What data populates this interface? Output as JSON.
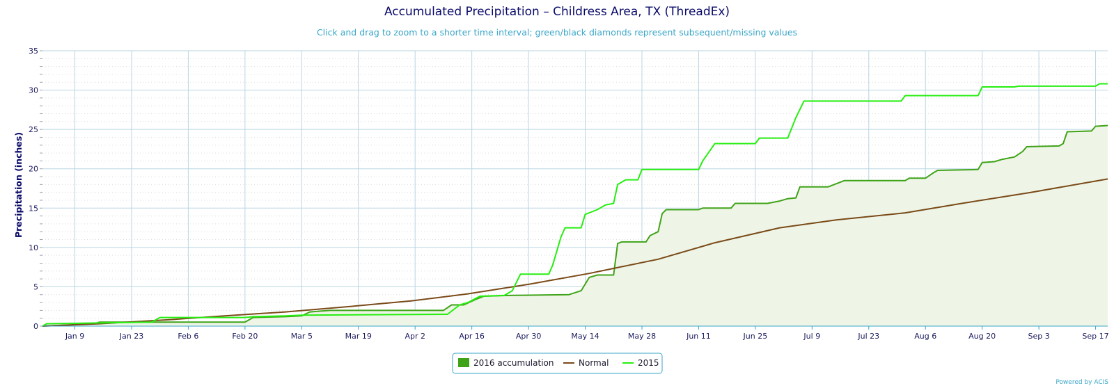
{
  "chart_data": {
    "type": "area",
    "title": "Accumulated Precipitation – Childress Area, TX (ThreadEx)",
    "subtitle": "Click and drag to zoom to a shorter time interval; green/black diamonds represent subsequent/missing values",
    "ylabel": "Precipitation (inches)",
    "xlabel": "",
    "ylim": [
      0,
      35
    ],
    "y_ticks": [
      0,
      5,
      10,
      15,
      20,
      25,
      30,
      35
    ],
    "xlim": [
      "2016-01-01",
      "2016-09-20"
    ],
    "x_ticks": [
      {
        "date": "2016-01-09",
        "label": "Jan 9"
      },
      {
        "date": "2016-01-23",
        "label": "Jan 23"
      },
      {
        "date": "2016-02-06",
        "label": "Feb 6"
      },
      {
        "date": "2016-02-20",
        "label": "Feb 20"
      },
      {
        "date": "2016-03-05",
        "label": "Mar 5"
      },
      {
        "date": "2016-03-19",
        "label": "Mar 19"
      },
      {
        "date": "2016-04-02",
        "label": "Apr 2"
      },
      {
        "date": "2016-04-16",
        "label": "Apr 16"
      },
      {
        "date": "2016-04-30",
        "label": "Apr 30"
      },
      {
        "date": "2016-05-14",
        "label": "May 14"
      },
      {
        "date": "2016-05-28",
        "label": "May 28"
      },
      {
        "date": "2016-06-11",
        "label": "Jun 11"
      },
      {
        "date": "2016-06-25",
        "label": "Jun 25"
      },
      {
        "date": "2016-07-09",
        "label": "Jul 9"
      },
      {
        "date": "2016-07-23",
        "label": "Jul 23"
      },
      {
        "date": "2016-08-06",
        "label": "Aug 6"
      },
      {
        "date": "2016-08-20",
        "label": "Aug 20"
      },
      {
        "date": "2016-09-03",
        "label": "Sep 3"
      },
      {
        "date": "2016-09-17",
        "label": "Sep 17"
      }
    ],
    "grid": true,
    "legend_position": "bottom-center",
    "series": [
      {
        "name": "2016 accumulation",
        "kind": "area",
        "color": "#3fa318",
        "fill": "#eef5e6",
        "points": [
          [
            "2016-01-01",
            0
          ],
          [
            "2016-01-14",
            0.3
          ],
          [
            "2016-01-15",
            0.5
          ],
          [
            "2016-01-25",
            0.5
          ],
          [
            "2016-02-20",
            0.5
          ],
          [
            "2016-02-22",
            1.1
          ],
          [
            "2016-03-01",
            1.2
          ],
          [
            "2016-03-05",
            1.3
          ],
          [
            "2016-03-07",
            1.8
          ],
          [
            "2016-03-12",
            2.0
          ],
          [
            "2016-04-09",
            2.0
          ],
          [
            "2016-04-11",
            2.7
          ],
          [
            "2016-04-14",
            2.7
          ],
          [
            "2016-04-17",
            3.4
          ],
          [
            "2016-04-19",
            3.8
          ],
          [
            "2016-04-25",
            3.9
          ],
          [
            "2016-05-10",
            4.0
          ],
          [
            "2016-05-13",
            4.5
          ],
          [
            "2016-05-15",
            6.2
          ],
          [
            "2016-05-17",
            6.5
          ],
          [
            "2016-05-21",
            6.5
          ],
          [
            "2016-05-22",
            10.5
          ],
          [
            "2016-05-23",
            10.7
          ],
          [
            "2016-05-29",
            10.7
          ],
          [
            "2016-05-30",
            11.5
          ],
          [
            "2016-06-01",
            12.0
          ],
          [
            "2016-06-02",
            14.3
          ],
          [
            "2016-06-03",
            14.8
          ],
          [
            "2016-06-11",
            14.8
          ],
          [
            "2016-06-12",
            15.0
          ],
          [
            "2016-06-19",
            15.0
          ],
          [
            "2016-06-20",
            15.6
          ],
          [
            "2016-06-28",
            15.6
          ],
          [
            "2016-07-01",
            15.9
          ],
          [
            "2016-07-03",
            16.2
          ],
          [
            "2016-07-05",
            16.3
          ],
          [
            "2016-07-06",
            17.7
          ],
          [
            "2016-07-13",
            17.7
          ],
          [
            "2016-07-15",
            18.1
          ],
          [
            "2016-07-17",
            18.5
          ],
          [
            "2016-08-01",
            18.5
          ],
          [
            "2016-08-02",
            18.8
          ],
          [
            "2016-08-06",
            18.8
          ],
          [
            "2016-08-08",
            19.5
          ],
          [
            "2016-08-09",
            19.8
          ],
          [
            "2016-08-19",
            19.9
          ],
          [
            "2016-08-20",
            20.8
          ],
          [
            "2016-08-23",
            20.9
          ],
          [
            "2016-08-25",
            21.2
          ],
          [
            "2016-08-28",
            21.5
          ],
          [
            "2016-08-30",
            22.2
          ],
          [
            "2016-08-31",
            22.8
          ],
          [
            "2016-09-08",
            22.9
          ],
          [
            "2016-09-09",
            23.2
          ],
          [
            "2016-09-10",
            24.7
          ],
          [
            "2016-09-16",
            24.8
          ],
          [
            "2016-09-17",
            25.4
          ],
          [
            "2016-09-20",
            25.5
          ]
        ]
      },
      {
        "name": "Normal",
        "kind": "line",
        "color": "#7a4a18",
        "points": [
          [
            "2016-01-01",
            0
          ],
          [
            "2016-01-15",
            0.3
          ],
          [
            "2016-02-01",
            0.8
          ],
          [
            "2016-02-15",
            1.3
          ],
          [
            "2016-03-01",
            1.8
          ],
          [
            "2016-03-15",
            2.4
          ],
          [
            "2016-04-01",
            3.2
          ],
          [
            "2016-04-15",
            4.1
          ],
          [
            "2016-05-01",
            5.4
          ],
          [
            "2016-05-15",
            6.7
          ],
          [
            "2016-06-01",
            8.5
          ],
          [
            "2016-06-15",
            10.6
          ],
          [
            "2016-07-01",
            12.5
          ],
          [
            "2016-07-15",
            13.5
          ],
          [
            "2016-08-01",
            14.4
          ],
          [
            "2016-08-15",
            15.6
          ],
          [
            "2016-09-01",
            17.0
          ],
          [
            "2016-09-20",
            18.7
          ]
        ]
      },
      {
        "name": "2015",
        "kind": "line",
        "color": "#26ee10",
        "points": [
          [
            "2016-01-01",
            0
          ],
          [
            "2016-01-02",
            0.3
          ],
          [
            "2016-01-28",
            0.5
          ],
          [
            "2016-01-30",
            1.1
          ],
          [
            "2016-02-20",
            1.1
          ],
          [
            "2016-02-22",
            1.2
          ],
          [
            "2016-03-01",
            1.3
          ],
          [
            "2016-03-05",
            1.4
          ],
          [
            "2016-04-10",
            1.5
          ],
          [
            "2016-04-13",
            2.7
          ],
          [
            "2016-04-15",
            3.0
          ],
          [
            "2016-04-18",
            3.8
          ],
          [
            "2016-04-24",
            3.9
          ],
          [
            "2016-04-26",
            4.5
          ],
          [
            "2016-04-28",
            6.6
          ],
          [
            "2016-05-05",
            6.6
          ],
          [
            "2016-05-06",
            7.8
          ],
          [
            "2016-05-08",
            11.3
          ],
          [
            "2016-05-09",
            12.5
          ],
          [
            "2016-05-13",
            12.5
          ],
          [
            "2016-05-14",
            14.2
          ],
          [
            "2016-05-17",
            14.8
          ],
          [
            "2016-05-19",
            15.4
          ],
          [
            "2016-05-21",
            15.6
          ],
          [
            "2016-05-22",
            18.0
          ],
          [
            "2016-05-24",
            18.6
          ],
          [
            "2016-05-27",
            18.6
          ],
          [
            "2016-05-28",
            19.9
          ],
          [
            "2016-06-11",
            19.9
          ],
          [
            "2016-06-12",
            21.0
          ],
          [
            "2016-06-15",
            23.2
          ],
          [
            "2016-06-25",
            23.2
          ],
          [
            "2016-06-26",
            23.9
          ],
          [
            "2016-07-03",
            23.9
          ],
          [
            "2016-07-05",
            26.5
          ],
          [
            "2016-07-07",
            28.6
          ],
          [
            "2016-07-31",
            28.6
          ],
          [
            "2016-08-01",
            29.3
          ],
          [
            "2016-08-19",
            29.3
          ],
          [
            "2016-08-20",
            30.4
          ],
          [
            "2016-08-28",
            30.4
          ],
          [
            "2016-08-29",
            30.5
          ],
          [
            "2016-09-17",
            30.5
          ],
          [
            "2016-09-18",
            30.8
          ],
          [
            "2016-09-20",
            30.8
          ]
        ]
      }
    ],
    "credit": "Powered by ACIS"
  }
}
